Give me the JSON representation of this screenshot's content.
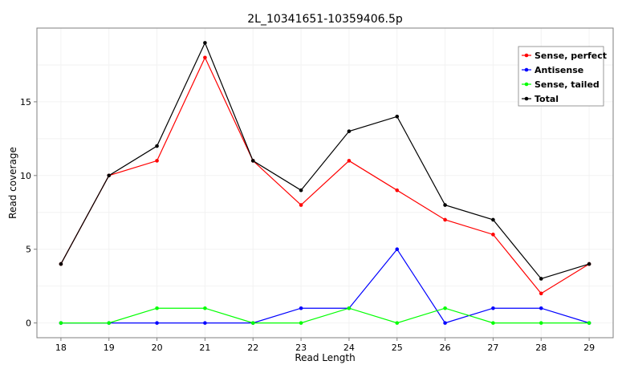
{
  "chart_data": {
    "type": "line",
    "title": "2L_10341651-10359406.5p",
    "xlabel": "Read Length",
    "ylabel": "Read coverage",
    "x": [
      18,
      19,
      20,
      21,
      22,
      23,
      24,
      25,
      26,
      27,
      28,
      29
    ],
    "xlim": [
      17.5,
      29.5
    ],
    "ylim": [
      -1,
      20
    ],
    "yticks": [
      0,
      5,
      10,
      15
    ],
    "grid": true,
    "legend_position": "top-right",
    "series": [
      {
        "name": "Sense, perfect",
        "color": "#ff0000",
        "values": [
          4,
          10,
          11,
          18,
          11,
          8,
          11,
          9,
          7,
          6,
          2,
          4
        ]
      },
      {
        "name": "Antisense",
        "color": "#0000ff",
        "values": [
          0,
          0,
          0,
          0,
          0,
          1,
          1,
          5,
          0,
          1,
          1,
          0
        ]
      },
      {
        "name": "Sense, tailed",
        "color": "#00ff00",
        "values": [
          0,
          0,
          1,
          1,
          0,
          0,
          1,
          0,
          1,
          0,
          0,
          0
        ]
      },
      {
        "name": "Total",
        "color": "#000000",
        "values": [
          4,
          10,
          12,
          19,
          11,
          9,
          13,
          14,
          8,
          7,
          3,
          4
        ]
      }
    ]
  }
}
